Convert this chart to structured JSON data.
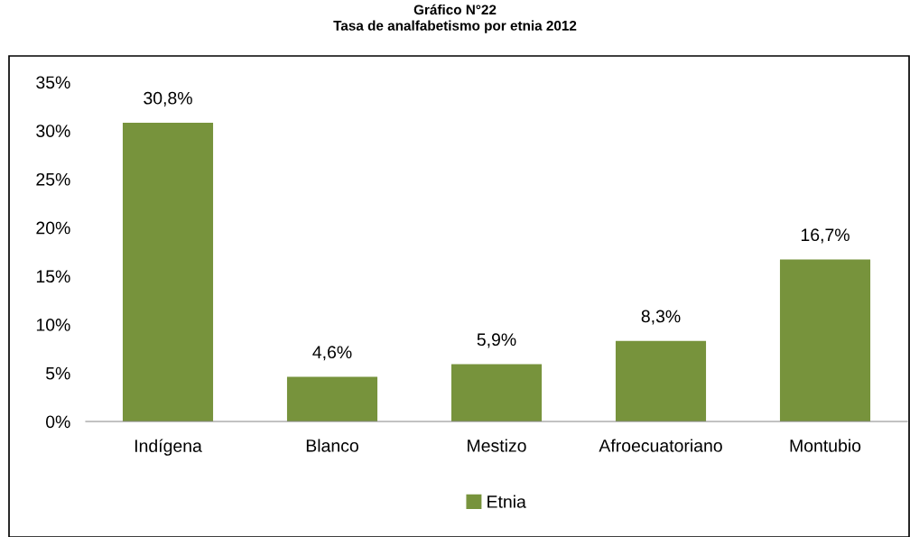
{
  "chart_data": {
    "type": "bar",
    "title": "Gráfico N°22\nTasa de analfabetismo por etnia 2012",
    "categories": [
      "Indígena",
      "Blanco",
      "Mestizo",
      "Afroecuatoriano",
      "Montubio"
    ],
    "series": [
      {
        "name": "Etnia",
        "color": "#77933c",
        "values": [
          30.8,
          4.6,
          5.9,
          8.3,
          16.7
        ],
        "value_labels": [
          "30,8%",
          "4,6%",
          "5,9%",
          "8,3%",
          "16,7%"
        ]
      }
    ],
    "ylim": [
      0,
      35
    ],
    "yticks": [
      {
        "value": 0,
        "label": "0%"
      },
      {
        "value": 5,
        "label": "5%"
      },
      {
        "value": 10,
        "label": "10%"
      },
      {
        "value": 15,
        "label": "15%"
      },
      {
        "value": 20,
        "label": "20%"
      },
      {
        "value": 25,
        "label": "25%"
      },
      {
        "value": 30,
        "label": "30%"
      },
      {
        "value": 35,
        "label": "35%"
      }
    ],
    "grid": false,
    "legend": "bottom"
  }
}
